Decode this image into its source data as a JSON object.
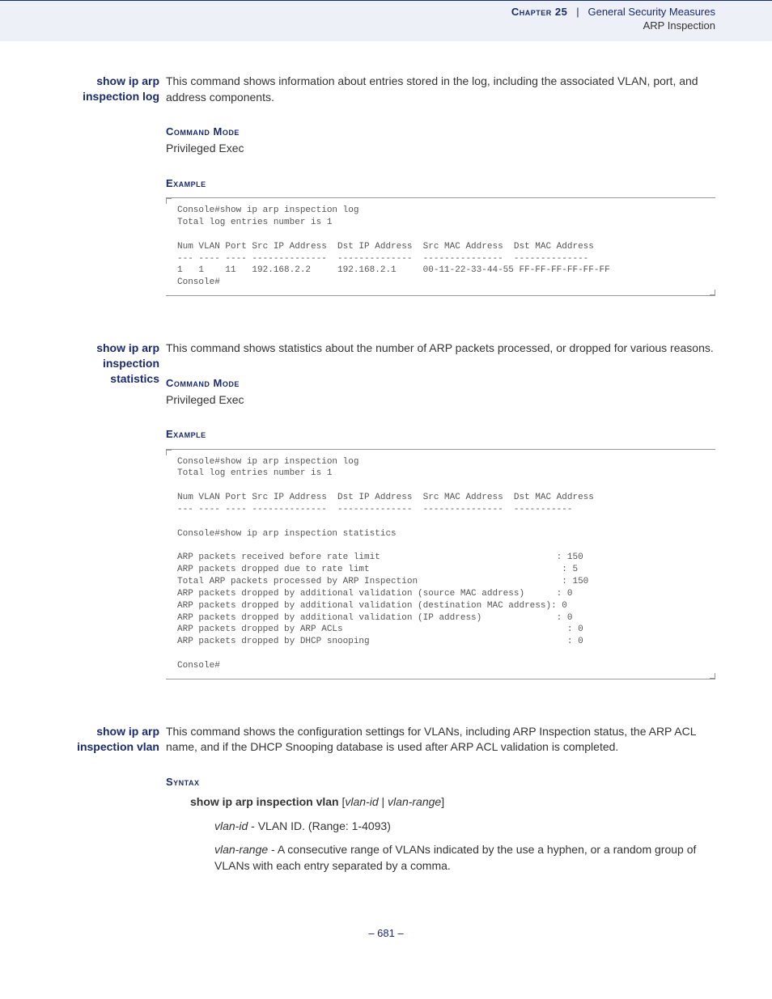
{
  "header": {
    "chapter_label": "Chapter 25",
    "separator": "|",
    "title": "General Security Measures",
    "subtitle": "ARP Inspection"
  },
  "sections": [
    {
      "cmd_name": "show ip arp inspection log",
      "description": "This command shows information about entries stored in the log, including the associated VLAN, port, and address components.",
      "command_mode_label": "Command Mode",
      "command_mode_value": "Privileged Exec",
      "example_label": "Example",
      "code": "Console#show ip arp inspection log\nTotal log entries number is 1\n\nNum VLAN Port Src IP Address  Dst IP Address  Src MAC Address  Dst MAC Address\n--- ---- ---- --------------  --------------  ---------------  --------------\n1   1    11   192.168.2.2     192.168.2.1     00-11-22-33-44-55 FF-FF-FF-FF-FF-FF\nConsole#"
    },
    {
      "cmd_name": "show ip arp inspection statistics",
      "description": "This command shows statistics about the number of ARP packets processed, or dropped for various reasons.",
      "command_mode_label": "Command Mode",
      "command_mode_value": "Privileged Exec",
      "example_label": "Example",
      "code": "Console#show ip arp inspection log\nTotal log entries number is 1\n\nNum VLAN Port Src IP Address  Dst IP Address  Src MAC Address  Dst MAC Address\n--- ---- ---- --------------  --------------  ---------------  -----------\n\nConsole#show ip arp inspection statistics\n\nARP packets received before rate limit                                 : 150\nARP packets dropped due to rate limt                                    : 5\nTotal ARP packets processed by ARP Inspection                           : 150\nARP packets dropped by additional validation (source MAC address)      : 0\nARP packets dropped by additional validation (destination MAC address): 0\nARP packets dropped by additional validation (IP address)              : 0\nARP packets dropped by ARP ACLs                                          : 0\nARP packets dropped by DHCP snooping                                     : 0\n\nConsole#"
    },
    {
      "cmd_name": "show ip arp inspection vlan",
      "description": "This command shows the configuration settings for VLANs, including ARP Inspection status, the ARP ACL name, and if the DHCP Snooping database is used after ARP ACL validation is completed.",
      "syntax_label": "Syntax",
      "syntax": {
        "line_bold": "show ip arp inspection vlan",
        "line_bracket_open": " [",
        "line_arg1": "vlan-id",
        "line_pipe": " | ",
        "line_arg2": "vlan-range",
        "line_bracket_close": "]",
        "vlan_id_label": "vlan-id",
        "vlan_id_desc": " - VLAN ID. (Range: 1-4093)",
        "vlan_range_label": "vlan-range",
        "vlan_range_desc": " - A consecutive range of VLANs indicated by the use a hyphen, or a random group of VLANs with each entry separated by a comma."
      }
    }
  ],
  "page_number": "– 681 –"
}
